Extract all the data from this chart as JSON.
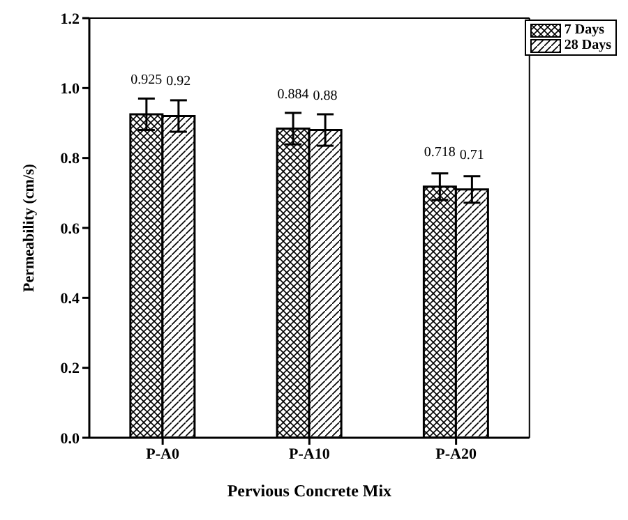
{
  "chart_data": {
    "type": "bar",
    "xlabel": "Pervious Concrete Mix",
    "ylabel": "Permeability (cm/s)",
    "categories": [
      "P-A0",
      "P-A10",
      "P-A20"
    ],
    "series": [
      {
        "name": "7 Days",
        "color": "#000000",
        "values": [
          0.925,
          0.884,
          0.718
        ],
        "errors": [
          0.045,
          0.045,
          0.038
        ]
      },
      {
        "name": "28 Days",
        "color": "#000000",
        "values": [
          0.92,
          0.88,
          0.71
        ],
        "errors": [
          0.045,
          0.045,
          0.038
        ]
      }
    ],
    "ylim": [
      0,
      1.2
    ],
    "yticks": [
      {
        "value": 0,
        "label": "0.0"
      },
      0.2,
      0.4,
      0.6,
      0.8,
      {
        "value": 1,
        "label": "1.0"
      },
      1.2
    ],
    "data_labels": true,
    "legend": "top right",
    "grid": false
  }
}
